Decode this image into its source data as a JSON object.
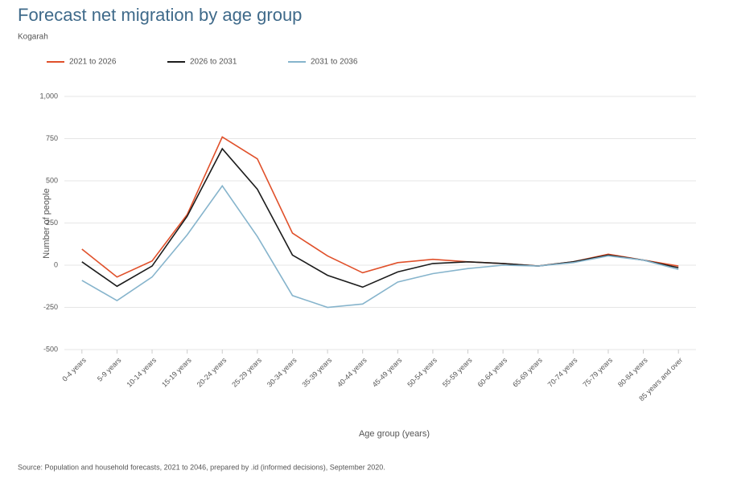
{
  "chart_data": {
    "type": "line",
    "title": "Forecast net migration by age group",
    "subtitle": "Kogarah",
    "y_label": "Number of people",
    "x_label": "Age group (years)",
    "source": "Source: Population and household forecasts, 2021 to 2046, prepared by .id (informed decisions), September 2020.",
    "categories": [
      "0-4 years",
      "5-9 years",
      "10-14 years",
      "15-19 years",
      "20-24 years",
      "25-29 years",
      "30-34 years",
      "35-39 years",
      "40-44 years",
      "45-49 years",
      "50-54 years",
      "55-59 years",
      "60-64 years",
      "65-69 years",
      "70-74 years",
      "75-79 years",
      "80-84 years",
      "85 years and over"
    ],
    "series": [
      {
        "name": "2021 to 2026",
        "color": "#e0502a",
        "values": [
          95,
          -70,
          25,
          300,
          760,
          630,
          190,
          55,
          -45,
          15,
          35,
          20,
          10,
          -5,
          20,
          65,
          30,
          -5
        ]
      },
      {
        "name": "2026 to 2031",
        "color": "#1c1c1c",
        "values": [
          20,
          -125,
          -5,
          290,
          690,
          450,
          60,
          -60,
          -130,
          -40,
          10,
          20,
          10,
          -5,
          20,
          60,
          30,
          -15
        ]
      },
      {
        "name": "2031 to 2036",
        "color": "#86b4cc",
        "values": [
          -90,
          -210,
          -70,
          180,
          470,
          170,
          -180,
          -250,
          -230,
          -100,
          -50,
          -20,
          0,
          -5,
          15,
          55,
          30,
          -25
        ]
      }
    ],
    "ylim": [
      -500,
      1000
    ],
    "yticks": [
      {
        "value": -500,
        "label": "-500"
      },
      {
        "value": -250,
        "label": "-250"
      },
      0,
      250,
      500,
      750,
      {
        "value": 1000,
        "label": "1,000"
      }
    ],
    "grid": true
  }
}
